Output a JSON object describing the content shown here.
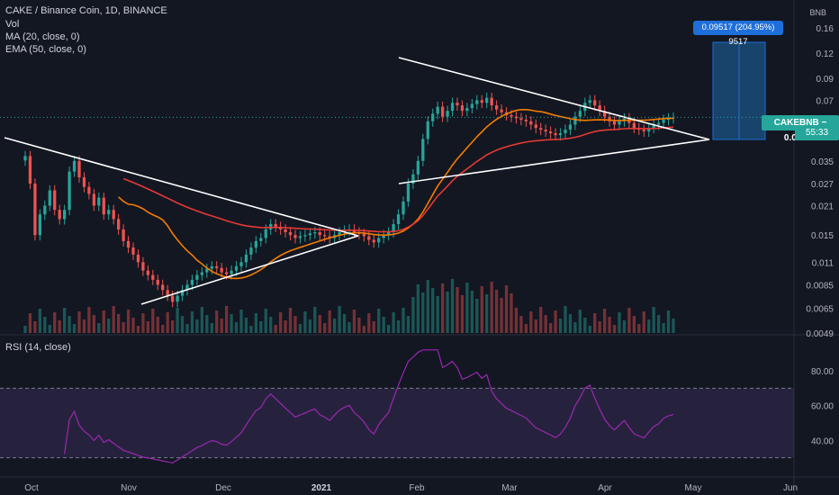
{
  "legend": {
    "symbol": "CAKE / Binance Coin, 1D, BINANCE",
    "vol": "Vol",
    "ma": "MA (20, close, 0)",
    "ema": "EMA (50, close, 0)"
  },
  "rsi_legend": "RSI (14, close)",
  "price_tag": "CAKEBNB − 0.05755",
  "countdown": "55:33",
  "measure_label": "0.09517 (204.95%) 9517",
  "currency": "BNB",
  "colors": {
    "background": "#131722",
    "up": "#26a69a",
    "down": "#ef5350",
    "ma": "#f57c00",
    "ema": "#e53935",
    "rsi": "#9c27b0",
    "measure": "#1e6fd9"
  },
  "chart_data": [
    {
      "type": "candlestick",
      "title": "CAKE / Binance Coin, 1D, BINANCE",
      "x_ticks": [
        "Oct",
        "Nov",
        "Dec",
        "2021",
        "Feb",
        "Mar",
        "Apr",
        "May",
        "Jun"
      ],
      "y_scale": "log",
      "y_ticks": [
        0.16,
        0.12,
        0.09,
        0.07,
        0.0575,
        0.035,
        0.027,
        0.021,
        0.015,
        0.011,
        0.0085,
        0.0065,
        0.0049
      ],
      "ylim": [
        0.0049,
        0.22
      ],
      "series": [
        {
          "name": "MA (20, close, 0)",
          "values_note": "orange moving average"
        },
        {
          "name": "EMA (50, close, 0)",
          "values_note": "red exponential moving average"
        }
      ],
      "close": [
        0.037,
        0.027,
        0.015,
        0.019,
        0.021,
        0.025,
        0.02,
        0.018,
        0.02,
        0.031,
        0.035,
        0.029,
        0.026,
        0.024,
        0.021,
        0.023,
        0.019,
        0.02,
        0.018,
        0.016,
        0.014,
        0.013,
        0.012,
        0.011,
        0.01,
        0.0095,
        0.009,
        0.0085,
        0.008,
        0.0075,
        0.007,
        0.0075,
        0.008,
        0.0085,
        0.009,
        0.0095,
        0.0098,
        0.0102,
        0.0105,
        0.0103,
        0.0098,
        0.0096,
        0.01,
        0.0105,
        0.011,
        0.012,
        0.013,
        0.014,
        0.0145,
        0.016,
        0.017,
        0.0165,
        0.016,
        0.0155,
        0.015,
        0.0145,
        0.0148,
        0.015,
        0.0153,
        0.0155,
        0.015,
        0.0148,
        0.0145,
        0.015,
        0.0155,
        0.0158,
        0.016,
        0.0155,
        0.0152,
        0.0148,
        0.0142,
        0.0138,
        0.0145,
        0.015,
        0.0155,
        0.017,
        0.019,
        0.022,
        0.027,
        0.03,
        0.035,
        0.045,
        0.055,
        0.06,
        0.065,
        0.058,
        0.062,
        0.068,
        0.066,
        0.062,
        0.064,
        0.067,
        0.07,
        0.068,
        0.072,
        0.066,
        0.063,
        0.061,
        0.059,
        0.058,
        0.057,
        0.056,
        0.055,
        0.053,
        0.051,
        0.05,
        0.049,
        0.048,
        0.047,
        0.048,
        0.05,
        0.053,
        0.058,
        0.062,
        0.068,
        0.07,
        0.066,
        0.062,
        0.058,
        0.055,
        0.053,
        0.055,
        0.057,
        0.054,
        0.051,
        0.05,
        0.049,
        0.051,
        0.053,
        0.054,
        0.056,
        0.057,
        0.0575
      ],
      "volume_note": "Vol histogram, up/down colored",
      "rsi": {
        "name": "RSI (14, close)",
        "ylim": [
          20,
          95
        ],
        "y_ticks": [
          80,
          60,
          40
        ],
        "band": [
          30,
          70
        ]
      },
      "annotations": [
        {
          "type": "measure",
          "label": "0.09517 (204.95%) 9517"
        },
        {
          "type": "last_price",
          "label": "CAKEBNB − 0.05755"
        }
      ]
    }
  ]
}
